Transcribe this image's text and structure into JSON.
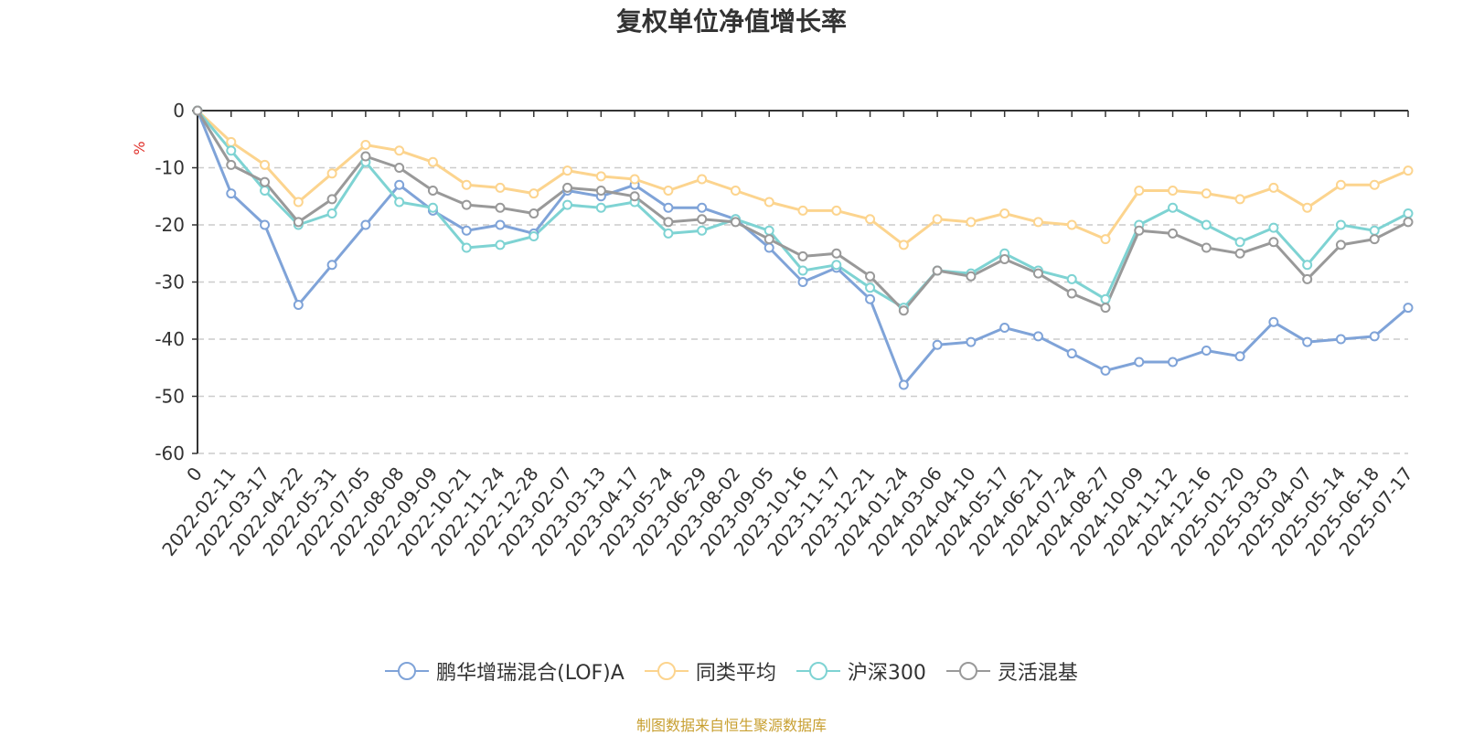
{
  "title": "复权单位净值增长率",
  "source_note": "制图数据来自恒生聚源数据库",
  "chart_data": {
    "type": "line",
    "title": "复权单位净值增长率",
    "ylabel": "%",
    "ylim": [
      -60,
      0
    ],
    "y_ticks": [
      0,
      -10,
      -20,
      -30,
      -40,
      -50,
      -60
    ],
    "grid": true,
    "legend_position": "bottom",
    "x": [
      "0",
      "2022-02-11",
      "2022-03-17",
      "2022-04-22",
      "2022-05-31",
      "2022-07-05",
      "2022-08-08",
      "2022-09-09",
      "2022-10-21",
      "2022-11-24",
      "2022-12-28",
      "2023-02-07",
      "2023-03-13",
      "2023-04-17",
      "2023-05-24",
      "2023-06-29",
      "2023-08-02",
      "2023-09-05",
      "2023-10-16",
      "2023-11-17",
      "2023-12-21",
      "2024-01-24",
      "2024-03-06",
      "2024-04-10",
      "2024-05-17",
      "2024-06-21",
      "2024-07-24",
      "2024-08-27",
      "2024-10-09",
      "2024-11-12",
      "2024-12-16",
      "2025-01-20",
      "2025-03-03",
      "2025-04-07",
      "2025-05-14",
      "2025-06-18",
      "2025-07-17"
    ],
    "series": [
      {
        "name": "鹏华增瑞混合(LOF)A",
        "color": "#7fa3d8",
        "values": [
          0,
          -14.5,
          -20,
          -34,
          -27,
          -20,
          -13,
          -17.5,
          -21,
          -20,
          -21.5,
          -14,
          -15,
          -13,
          -17,
          -17,
          -19,
          -24,
          -30,
          -27.5,
          -33,
          -48,
          -41,
          -40.5,
          -38,
          -39.5,
          -42.5,
          -45.5,
          -44,
          -44,
          -42,
          -43,
          -37,
          -40.5,
          -40,
          -39.5,
          -34.5
        ]
      },
      {
        "name": "同类平均",
        "color": "#fcd48e",
        "values": [
          0,
          -5.5,
          -9.5,
          -16,
          -11,
          -6,
          -7,
          -9,
          -13,
          -13.5,
          -14.5,
          -10.5,
          -11.5,
          -12,
          -14,
          -12,
          -14,
          -16,
          -17.5,
          -17.5,
          -19,
          -23.5,
          -19,
          -19.5,
          -18,
          -19.5,
          -20,
          -22.5,
          -14,
          -14,
          -14.5,
          -15.5,
          -13.5,
          -17,
          -13,
          -13,
          -10.5
        ]
      },
      {
        "name": "沪深300",
        "color": "#7ed3d3",
        "values": [
          0,
          -7,
          -14,
          -20,
          -18,
          -9,
          -16,
          -17,
          -24,
          -23.5,
          -22,
          -16.5,
          -17,
          -16,
          -21.5,
          -21,
          -19,
          -21,
          -28,
          -27,
          -31,
          -34.5,
          -28,
          -28.5,
          -25,
          -28,
          -29.5,
          -33,
          -20,
          -17,
          -20,
          -23,
          -20.5,
          -27,
          -20,
          -21,
          -18
        ]
      },
      {
        "name": "灵活混基",
        "color": "#999999",
        "values": [
          0,
          -9.5,
          -12.5,
          -19.5,
          -15.5,
          -8,
          -10,
          -14,
          -16.5,
          -17,
          -18,
          -13.5,
          -14,
          -15,
          -19.5,
          -19,
          -19.5,
          -22.5,
          -25.5,
          -25,
          -29,
          -35,
          -28,
          -29,
          -26,
          -28.5,
          -32,
          -34.5,
          -21,
          -21.5,
          -24,
          -25,
          -23,
          -29.5,
          -23.5,
          -22.5,
          -19.5
        ]
      }
    ]
  }
}
